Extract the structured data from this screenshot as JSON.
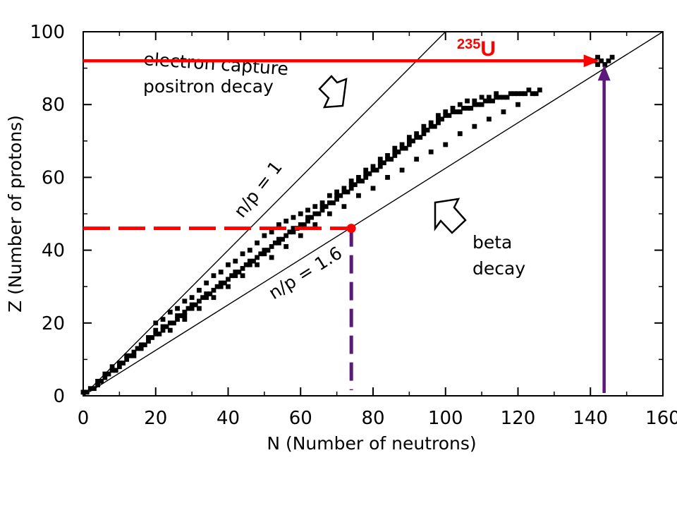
{
  "chart_data": {
    "type": "scatter",
    "title": "",
    "xlabel": "N (Number of neutrons)",
    "ylabel": "Z (Number of protons)",
    "xlim": [
      0,
      160
    ],
    "ylim": [
      0,
      100
    ],
    "x_ticks": [
      0,
      20,
      40,
      60,
      80,
      100,
      120,
      140,
      160
    ],
    "y_ticks": [
      0,
      20,
      40,
      60,
      80,
      100
    ],
    "grid": false,
    "series": [
      {
        "name": "",
        "points": [
          [
            0,
            1
          ],
          [
            1,
            1
          ],
          [
            2,
            2
          ],
          [
            3,
            2
          ],
          [
            4,
            3
          ],
          [
            4,
            4
          ],
          [
            5,
            4
          ],
          [
            6,
            5
          ],
          [
            6,
            6
          ],
          [
            7,
            6
          ],
          [
            8,
            7
          ],
          [
            8,
            8
          ],
          [
            9,
            7
          ],
          [
            10,
            8
          ],
          [
            10,
            9
          ],
          [
            11,
            9
          ],
          [
            12,
            10
          ],
          [
            12,
            11
          ],
          [
            13,
            11
          ],
          [
            14,
            11
          ],
          [
            14,
            12
          ],
          [
            15,
            13
          ],
          [
            16,
            13
          ],
          [
            16,
            14
          ],
          [
            17,
            14
          ],
          [
            18,
            15
          ],
          [
            18,
            16
          ],
          [
            19,
            16
          ],
          [
            20,
            17
          ],
          [
            20,
            18
          ],
          [
            21,
            17
          ],
          [
            22,
            18
          ],
          [
            22,
            19
          ],
          [
            23,
            19
          ],
          [
            24,
            20
          ],
          [
            25,
            20
          ],
          [
            26,
            21
          ],
          [
            26,
            22
          ],
          [
            27,
            22
          ],
          [
            28,
            22
          ],
          [
            28,
            23
          ],
          [
            29,
            24
          ],
          [
            30,
            24
          ],
          [
            30,
            25
          ],
          [
            31,
            25
          ],
          [
            32,
            26
          ],
          [
            33,
            27
          ],
          [
            34,
            27
          ],
          [
            34,
            28
          ],
          [
            35,
            28
          ],
          [
            36,
            29
          ],
          [
            37,
            30
          ],
          [
            38,
            30
          ],
          [
            38,
            31
          ],
          [
            39,
            31
          ],
          [
            40,
            32
          ],
          [
            41,
            33
          ],
          [
            42,
            33
          ],
          [
            42,
            34
          ],
          [
            43,
            34
          ],
          [
            44,
            35
          ],
          [
            45,
            36
          ],
          [
            46,
            36
          ],
          [
            46,
            37
          ],
          [
            47,
            37
          ],
          [
            48,
            38
          ],
          [
            49,
            39
          ],
          [
            50,
            39
          ],
          [
            50,
            40
          ],
          [
            51,
            40
          ],
          [
            52,
            41
          ],
          [
            53,
            42
          ],
          [
            54,
            42
          ],
          [
            54,
            43
          ],
          [
            55,
            43
          ],
          [
            56,
            44
          ],
          [
            57,
            45
          ],
          [
            58,
            45
          ],
          [
            58,
            46
          ],
          [
            59,
            46
          ],
          [
            60,
            47
          ],
          [
            61,
            47
          ],
          [
            62,
            48
          ],
          [
            62,
            49
          ],
          [
            63,
            49
          ],
          [
            64,
            50
          ],
          [
            65,
            50
          ],
          [
            66,
            51
          ],
          [
            66,
            52
          ],
          [
            67,
            52
          ],
          [
            68,
            53
          ],
          [
            69,
            53
          ],
          [
            70,
            54
          ],
          [
            70,
            55
          ],
          [
            71,
            55
          ],
          [
            72,
            56
          ],
          [
            73,
            56
          ],
          [
            74,
            57
          ],
          [
            74,
            58
          ],
          [
            75,
            58
          ],
          [
            76,
            59
          ],
          [
            77,
            59
          ],
          [
            78,
            60
          ],
          [
            78,
            61
          ],
          [
            79,
            61
          ],
          [
            80,
            62
          ],
          [
            81,
            62
          ],
          [
            82,
            63
          ],
          [
            82,
            64
          ],
          [
            83,
            64
          ],
          [
            84,
            65
          ],
          [
            85,
            65
          ],
          [
            86,
            66
          ],
          [
            86,
            67
          ],
          [
            87,
            67
          ],
          [
            88,
            68
          ],
          [
            89,
            68
          ],
          [
            90,
            69
          ],
          [
            90,
            70
          ],
          [
            91,
            70
          ],
          [
            92,
            71
          ],
          [
            93,
            71
          ],
          [
            94,
            72
          ],
          [
            94,
            73
          ],
          [
            95,
            73
          ],
          [
            96,
            74
          ],
          [
            97,
            74
          ],
          [
            98,
            75
          ],
          [
            98,
            76
          ],
          [
            99,
            76
          ],
          [
            100,
            77
          ],
          [
            101,
            77
          ],
          [
            102,
            78
          ],
          [
            103,
            78
          ],
          [
            104,
            78
          ],
          [
            105,
            79
          ],
          [
            106,
            79
          ],
          [
            107,
            79
          ],
          [
            108,
            80
          ],
          [
            109,
            80
          ],
          [
            110,
            80
          ],
          [
            111,
            81
          ],
          [
            112,
            81
          ],
          [
            113,
            81
          ],
          [
            114,
            82
          ],
          [
            115,
            82
          ],
          [
            116,
            82
          ],
          [
            117,
            82
          ],
          [
            118,
            83
          ],
          [
            119,
            83
          ],
          [
            120,
            83
          ],
          [
            121,
            83
          ],
          [
            122,
            83
          ],
          [
            123,
            84
          ],
          [
            124,
            83
          ],
          [
            125,
            83
          ],
          [
            126,
            84
          ],
          [
            20,
            20
          ],
          [
            22,
            21
          ],
          [
            24,
            23
          ],
          [
            26,
            24
          ],
          [
            28,
            26
          ],
          [
            30,
            27
          ],
          [
            32,
            29
          ],
          [
            34,
            31
          ],
          [
            36,
            33
          ],
          [
            38,
            34
          ],
          [
            40,
            36
          ],
          [
            42,
            37
          ],
          [
            44,
            39
          ],
          [
            46,
            40
          ],
          [
            48,
            42
          ],
          [
            50,
            44
          ],
          [
            52,
            45
          ],
          [
            54,
            47
          ],
          [
            56,
            48
          ],
          [
            58,
            49
          ],
          [
            60,
            50
          ],
          [
            62,
            51
          ],
          [
            64,
            52
          ],
          [
            66,
            53
          ],
          [
            68,
            55
          ],
          [
            70,
            56
          ],
          [
            72,
            57
          ],
          [
            74,
            59
          ],
          [
            76,
            60
          ],
          [
            78,
            62
          ],
          [
            80,
            63
          ],
          [
            82,
            65
          ],
          [
            84,
            66
          ],
          [
            86,
            68
          ],
          [
            88,
            69
          ],
          [
            90,
            71
          ],
          [
            92,
            72
          ],
          [
            94,
            74
          ],
          [
            96,
            75
          ],
          [
            98,
            77
          ],
          [
            100,
            78
          ],
          [
            102,
            79
          ],
          [
            104,
            80
          ],
          [
            106,
            81
          ],
          [
            108,
            81
          ],
          [
            110,
            82
          ],
          [
            112,
            82
          ],
          [
            114,
            83
          ],
          [
            24,
            18
          ],
          [
            28,
            21
          ],
          [
            32,
            24
          ],
          [
            36,
            27
          ],
          [
            40,
            30
          ],
          [
            44,
            33
          ],
          [
            48,
            36
          ],
          [
            52,
            38
          ],
          [
            56,
            41
          ],
          [
            60,
            44
          ],
          [
            64,
            47
          ],
          [
            68,
            50
          ],
          [
            72,
            52
          ],
          [
            76,
            55
          ],
          [
            80,
            57
          ],
          [
            84,
            60
          ],
          [
            88,
            62
          ],
          [
            92,
            65
          ],
          [
            96,
            67
          ],
          [
            100,
            69
          ],
          [
            104,
            72
          ],
          [
            108,
            74
          ],
          [
            112,
            76
          ],
          [
            116,
            78
          ],
          [
            120,
            80
          ],
          [
            141,
            92
          ],
          [
            142,
            91
          ],
          [
            143,
            92
          ],
          [
            144,
            91
          ],
          [
            145,
            92
          ],
          [
            146,
            93
          ],
          [
            142,
            93
          ]
        ]
      }
    ],
    "reference_lines": [
      {
        "label": "n/p = 1",
        "from": [
          0,
          0
        ],
        "to": [
          100,
          100
        ]
      },
      {
        "label": "n/p = 1.6",
        "from": [
          0,
          0
        ],
        "to": [
          160,
          100
        ]
      }
    ],
    "annotations": {
      "electron_capture": [
        "electron capture",
        "positron decay"
      ],
      "beta_decay": [
        "beta",
        "decay"
      ],
      "line1_label": "n/p = 1",
      "line2_label": "n/p = 1.6",
      "isotope_mass": "235",
      "isotope_symbol": "U"
    },
    "overlays": {
      "u235_point": [
        143,
        92
      ],
      "marked_point": [
        74,
        46
      ],
      "colors": {
        "red": "#ff0000",
        "purple": "#5b1a7a",
        "black": "#000000"
      }
    }
  }
}
